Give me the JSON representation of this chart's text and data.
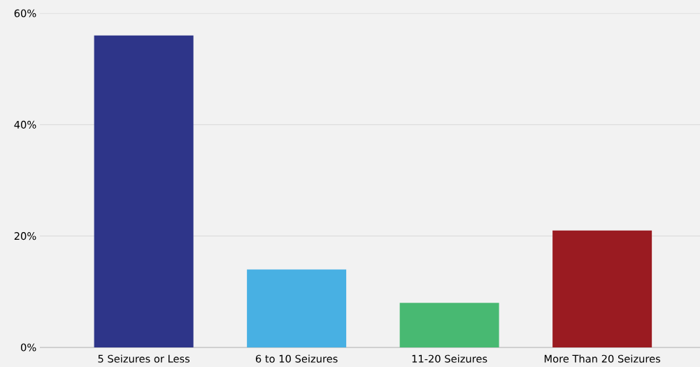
{
  "chart_data": {
    "type": "bar",
    "categories": [
      "5 Seizures or Less",
      "6 to 10 Seizures",
      "11-20 Seizures",
      "More Than 20 Seizures"
    ],
    "values": [
      56,
      14,
      8,
      21
    ],
    "colors": [
      "#2e3589",
      "#48b0e3",
      "#48b972",
      "#9a1b21"
    ],
    "ylim": [
      0,
      60
    ],
    "yticks": [
      {
        "value": 0,
        "label": "0%"
      },
      {
        "value": 20,
        "label": "20%"
      },
      {
        "value": 40,
        "label": "40%"
      },
      {
        "value": 60,
        "label": "60%"
      }
    ],
    "grid": "y"
  }
}
